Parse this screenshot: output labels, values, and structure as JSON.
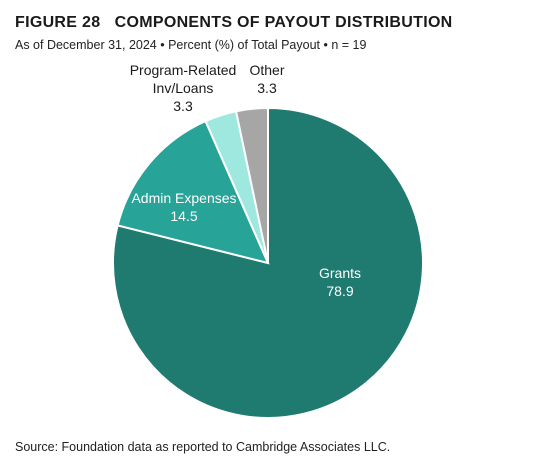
{
  "figure": {
    "title": "FIGURE 28   COMPONENTS OF PAYOUT DISTRIBUTION",
    "subtitle": "As of December 31, 2024 • Percent (%) of Total Payout • n = 19",
    "source": "Source: Foundation data as reported to Cambridge Associates LLC."
  },
  "chart_data": {
    "type": "pie",
    "title": "COMPONENTS OF PAYOUT DISTRIBUTION",
    "slices": [
      {
        "label": [
          "Grants"
        ],
        "value": 78.9,
        "value_text": "78.9",
        "color": "#1f7a70",
        "label_color": "#ffffff"
      },
      {
        "label": [
          "Admin Expenses"
        ],
        "value": 14.5,
        "value_text": "14.5",
        "color": "#27a397",
        "label_color": "#ffffff"
      },
      {
        "label": [
          "Program-Related",
          "Inv/Loans"
        ],
        "value": 3.3,
        "value_text": "3.3",
        "color": "#9ee8e0",
        "label_color": "#1a1a1a"
      },
      {
        "label": [
          "Other"
        ],
        "value": 3.3,
        "value_text": "3.3",
        "color": "#a6a6a6",
        "label_color": "#1a1a1a"
      }
    ]
  }
}
